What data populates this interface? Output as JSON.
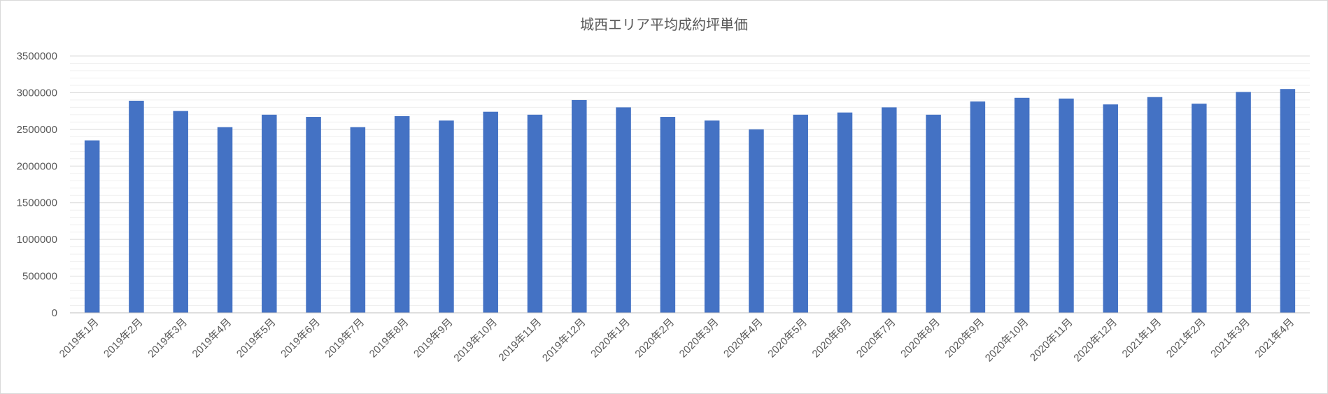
{
  "chart_data": {
    "type": "bar",
    "title": "城西エリア平均成約坪単価",
    "xlabel": "",
    "ylabel": "",
    "ylim": [
      0,
      3500000
    ],
    "y_ticks": [
      "0",
      "500000",
      "1000000",
      "1500000",
      "2000000",
      "2500000",
      "3000000",
      "3500000"
    ],
    "grid": true,
    "legend": "none",
    "bar_color": "#4472C4",
    "categories": [
      "2019年1月",
      "2019年2月",
      "2019年3月",
      "2019年4月",
      "2019年5月",
      "2019年6月",
      "2019年7月",
      "2019年8月",
      "2019年9月",
      "2019年10月",
      "2019年11月",
      "2019年12月",
      "2020年1月",
      "2020年2月",
      "2020年3月",
      "2020年4月",
      "2020年5月",
      "2020年6月",
      "2020年7月",
      "2020年8月",
      "2020年9月",
      "2020年10月",
      "2020年11月",
      "2020年12月",
      "2021年1月",
      "2021年2月",
      "2021年3月",
      "2021年4月"
    ],
    "values": [
      2350000,
      2890000,
      2750000,
      2530000,
      2700000,
      2670000,
      2530000,
      2680000,
      2620000,
      2740000,
      2700000,
      2900000,
      2800000,
      2670000,
      2620000,
      2500000,
      2700000,
      2730000,
      2800000,
      2700000,
      2880000,
      2930000,
      2920000,
      2840000,
      2940000,
      2850000,
      3010000,
      3050000
    ]
  }
}
